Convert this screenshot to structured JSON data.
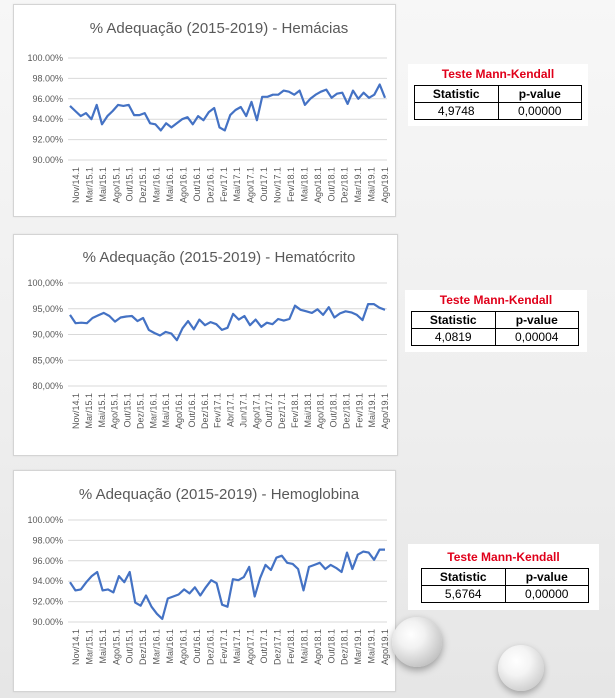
{
  "chart_data": [
    {
      "type": "line",
      "title": "% Adequação (2015-2019) - Hemácias",
      "y_tick_labels": [
        "100.00%",
        "98.00%",
        "96.00%",
        "94.00%",
        "92.00%",
        "90.00%"
      ],
      "ylim": [
        90,
        100
      ],
      "x_tick_labels": [
        "Nov/14.1",
        "Mar/15.1",
        "Mai/15.1",
        "Ago/15.1",
        "Out/15.1",
        "Dez/15.1",
        "Mar/16.1",
        "Mai/16.1",
        "Ago/16.1",
        "Out/16.1",
        "Dez/16.1",
        "Fev/17.1",
        "Mai/17.1",
        "Ago/17.1",
        "Out/17.1",
        "Nov/17.1",
        "Fev/18.1",
        "Mai/18.1",
        "Ago/18.1",
        "Out/18.1",
        "Dez/18.1",
        "Mar/19.1",
        "Mai/19.1",
        "Ago/19.1"
      ],
      "color": "#4472c4",
      "grid": true,
      "series": [
        {
          "values": [
            95.3,
            94.8,
            94.3,
            94.6,
            94.0,
            95.4,
            93.5,
            94.3,
            94.8,
            95.4,
            95.3,
            95.4,
            94.4,
            94.4,
            94.6,
            93.6,
            93.5,
            92.9,
            93.6,
            93.2,
            93.6,
            94.0,
            94.2,
            93.5,
            94.3,
            93.9,
            94.7,
            95.1,
            93.2,
            92.9,
            94.4,
            94.9,
            95.2,
            94.3,
            95.7,
            93.9,
            96.2,
            96.2,
            96.4,
            96.4,
            96.8,
            96.7,
            96.4,
            96.8,
            95.4,
            96.0,
            96.4,
            96.7,
            96.9,
            96.1,
            96.5,
            96.6,
            95.5,
            96.8,
            96.0,
            96.6,
            96.1,
            96.4,
            97.4,
            96.1
          ]
        }
      ]
    },
    {
      "type": "line",
      "title": "% Adequação (2015-2019) - Hematócrito",
      "y_tick_labels": [
        "100,00%",
        "95,00%",
        "90,00%",
        "85,00%",
        "80,00%"
      ],
      "ylim": [
        80,
        100
      ],
      "x_tick_labels": [
        "Nov/14.1",
        "Mar/15.1",
        "Mai/15.1",
        "Ago/15.1",
        "Out/15.1",
        "Dez/15.1",
        "Mar/16.1",
        "Mai/16.1",
        "Ago/16.1",
        "Out/16.1",
        "Dez/16.1",
        "Fev/17.1",
        "Abr/17.1",
        "Jun/17.1",
        "Ago/17.1",
        "Out/17.1",
        "Dez/17.1",
        "Fev/18.1",
        "Mai/18.1",
        "Ago/18.1",
        "Out/18.1",
        "Dez/18.1",
        "Fev/19.1",
        "Mai/19.1",
        "Ago/19.1"
      ],
      "color": "#4472c4",
      "grid": true,
      "series": [
        {
          "values": [
            93.8,
            92.2,
            92.3,
            92.2,
            93.2,
            93.7,
            94.2,
            93.6,
            92.5,
            93.3,
            93.5,
            93.6,
            92.6,
            93.2,
            90.9,
            90.3,
            89.8,
            90.5,
            90.2,
            88.9,
            91.2,
            92.6,
            91.0,
            92.9,
            91.8,
            92.4,
            92.0,
            90.9,
            91.3,
            94.0,
            92.9,
            93.6,
            91.8,
            92.9,
            91.5,
            92.3,
            92.0,
            93.0,
            92.7,
            93.0,
            95.6,
            94.8,
            94.5,
            94.2,
            94.9,
            93.8,
            95.3,
            93.3,
            94.1,
            94.5,
            94.3,
            93.8,
            92.8,
            95.9,
            95.9,
            95.2,
            94.8
          ]
        }
      ]
    },
    {
      "type": "line",
      "title": "% Adequação (2015-2019) - Hemoglobina",
      "y_tick_labels": [
        "100.00%",
        "98.00%",
        "96.00%",
        "94.00%",
        "92.00%",
        "90.00%"
      ],
      "ylim": [
        90,
        100
      ],
      "x_tick_labels": [
        "Nov/14.1",
        "Mar/15.1",
        "Mai/15.1",
        "Ago/15.1",
        "Out/15.1",
        "Dez/15.1",
        "Mar/16.1",
        "Mai/16.1",
        "Ago/16.1",
        "Out/16.1",
        "Dez/16.1",
        "Fev/17.1",
        "Mai/17.1",
        "Ago/17.1",
        "Out/17.1",
        "Dez/17.1",
        "Fev/18.1",
        "Mai/18.1",
        "Ago/18.1",
        "Out/18.1",
        "Dez/18.1",
        "Mar/19.1",
        "Mai/19.1",
        "Ago/19.1"
      ],
      "color": "#4472c4",
      "grid": true,
      "series": [
        {
          "values": [
            93.9,
            93.1,
            93.2,
            93.9,
            94.5,
            94.9,
            93.1,
            93.2,
            92.9,
            94.5,
            93.9,
            94.9,
            91.9,
            91.6,
            92.6,
            91.5,
            90.8,
            90.3,
            92.3,
            92.5,
            92.7,
            93.2,
            92.8,
            93.4,
            92.6,
            93.4,
            94.1,
            93.8,
            91.7,
            91.5,
            94.2,
            94.1,
            94.4,
            95.4,
            92.5,
            94.3,
            95.6,
            95.1,
            96.3,
            96.5,
            95.8,
            95.7,
            95.2,
            93.1,
            95.4,
            95.6,
            95.8,
            95.2,
            95.6,
            95.3,
            94.9,
            96.8,
            95.2,
            96.6,
            96.9,
            96.8,
            96.1,
            97.1,
            97.1
          ]
        }
      ]
    }
  ],
  "tests": [
    {
      "heading": "Teste Mann-Kendall",
      "col_statistic": "Statistic",
      "col_pvalue": "p-value",
      "statistic": "4,9748",
      "pvalue": "0,00000"
    },
    {
      "heading": "Teste Mann-Kendall",
      "col_statistic": "Statistic",
      "col_pvalue": "p-value",
      "statistic": "4,0819",
      "pvalue": "0,00004"
    },
    {
      "heading": "Teste Mann-Kendall",
      "col_statistic": "Statistic",
      "col_pvalue": "p-value",
      "statistic": "5,6764",
      "pvalue": "0,00000"
    }
  ]
}
